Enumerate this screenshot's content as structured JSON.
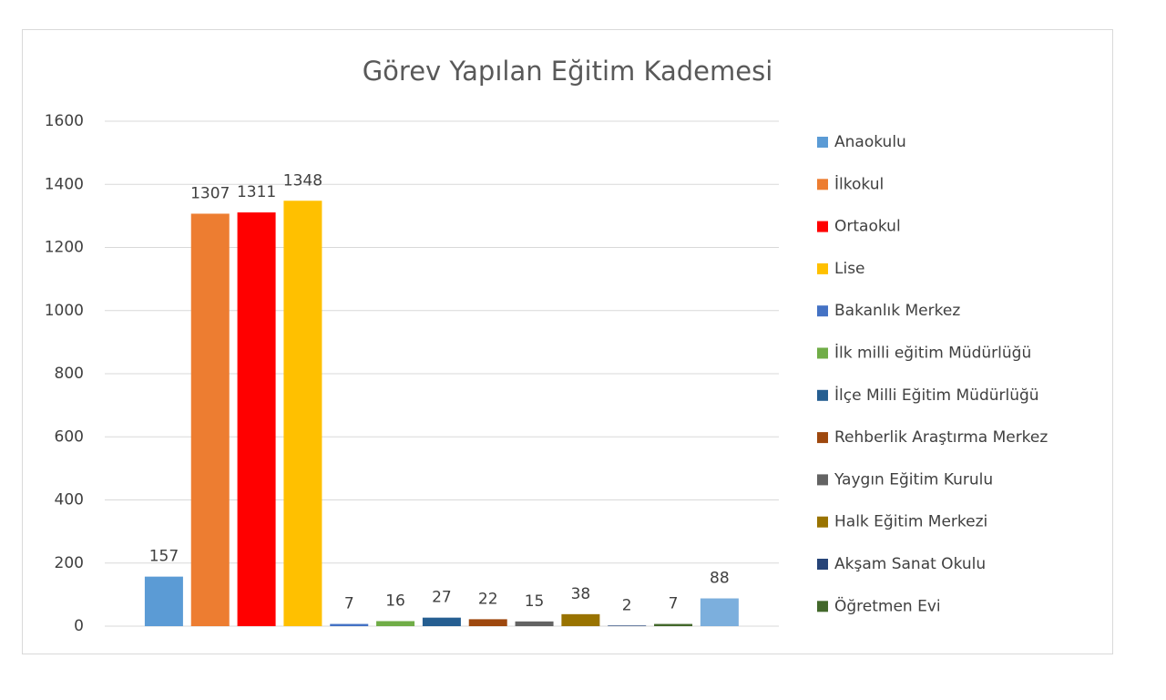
{
  "chart_data": {
    "type": "bar",
    "title": "Görev Yapılan Eğitim Kademesi",
    "categories": [
      "Anaokulu",
      "İlkokul",
      "Ortaokul",
      "Lise",
      "Bakanlık Merkez",
      "İlk milli eğitim Müdürlüğü",
      "İlçe Milli Eğitim Müdürlüğü",
      "Rehberlik Araştırma Merkez",
      "Yaygın Eğitim Kurulu",
      "Halk Eğitim Merkezi",
      "Akşam Sanat Okulu",
      "Öğretmen Evi",
      null
    ],
    "values": [
      157,
      1307,
      1311,
      1348,
      7,
      16,
      27,
      22,
      15,
      38,
      2,
      7,
      88
    ],
    "colors": [
      "#5b9bd5",
      "#ed7d31",
      "#ff0000",
      "#ffc000",
      "#4472c4",
      "#70ad47",
      "#255e91",
      "#9e480e",
      "#636363",
      "#997300",
      "#264478",
      "#43682b",
      "#7cafdd"
    ],
    "ylim": [
      0,
      1600
    ],
    "yticks": [
      0,
      200,
      400,
      600,
      800,
      1000,
      1200,
      1400,
      1600
    ],
    "grid": true,
    "legend": "right"
  }
}
